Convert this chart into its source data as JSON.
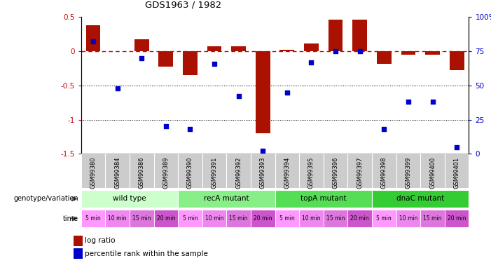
{
  "title": "GDS1963 / 1982",
  "samples": [
    "GSM99380",
    "GSM99384",
    "GSM99386",
    "GSM99389",
    "GSM99390",
    "GSM99391",
    "GSM99392",
    "GSM99393",
    "GSM99394",
    "GSM99395",
    "GSM99396",
    "GSM99397",
    "GSM99398",
    "GSM99399",
    "GSM99400",
    "GSM99401"
  ],
  "log_ratio": [
    0.38,
    0.0,
    0.18,
    -0.22,
    -0.35,
    0.07,
    0.07,
    -1.2,
    0.02,
    0.11,
    0.46,
    0.46,
    -0.18,
    -0.05,
    -0.05,
    -0.28
  ],
  "percentile_rank": [
    82,
    48,
    70,
    20,
    18,
    66,
    42,
    2,
    45,
    67,
    75,
    75,
    18,
    38,
    38,
    5
  ],
  "ylim_left": [
    -1.5,
    0.5
  ],
  "ylim_right": [
    0,
    100
  ],
  "bar_color": "#aa1100",
  "dot_color": "#0000cc",
  "ref_line_color": "#cc0000",
  "dot_line_y": [
    -0.5,
    -1.0
  ],
  "groups": [
    {
      "label": "wild type",
      "start": 0,
      "end": 3,
      "color": "#ccffcc"
    },
    {
      "label": "recA mutant",
      "start": 4,
      "end": 7,
      "color": "#88ee88"
    },
    {
      "label": "topA mutant",
      "start": 8,
      "end": 11,
      "color": "#55dd55"
    },
    {
      "label": "dnaC mutant",
      "start": 12,
      "end": 15,
      "color": "#33cc33"
    }
  ],
  "time_labels": [
    "5 min",
    "10 min",
    "15 min",
    "20 min",
    "5 min",
    "10 min",
    "15 min",
    "20 min",
    "5 min",
    "10 min",
    "15 min",
    "20 min",
    "5 min",
    "10 min",
    "15 min",
    "20 min"
  ],
  "time_colors": [
    "#ff99ff",
    "#ee88ee",
    "#dd77dd",
    "#cc55cc",
    "#ff99ff",
    "#ee88ee",
    "#dd77dd",
    "#cc55cc",
    "#ff99ff",
    "#ee88ee",
    "#dd77dd",
    "#cc55cc",
    "#ff99ff",
    "#ee88ee",
    "#dd77dd",
    "#cc55cc"
  ],
  "legend_bar_label": "log ratio",
  "legend_dot_label": "percentile rank within the sample",
  "right_yticks": [
    0,
    25,
    50,
    75,
    100
  ],
  "right_yticklabels": [
    "0",
    "25",
    "50",
    "75",
    "100%"
  ],
  "left_yticks": [
    -1.5,
    -1.0,
    -0.5,
    0.0,
    0.5
  ],
  "left_yticklabels": [
    "-1.5",
    "-1",
    "-0.5",
    "0",
    "0.5"
  ],
  "sample_bg_color": "#cccccc",
  "label_arrow_color": "#555555"
}
